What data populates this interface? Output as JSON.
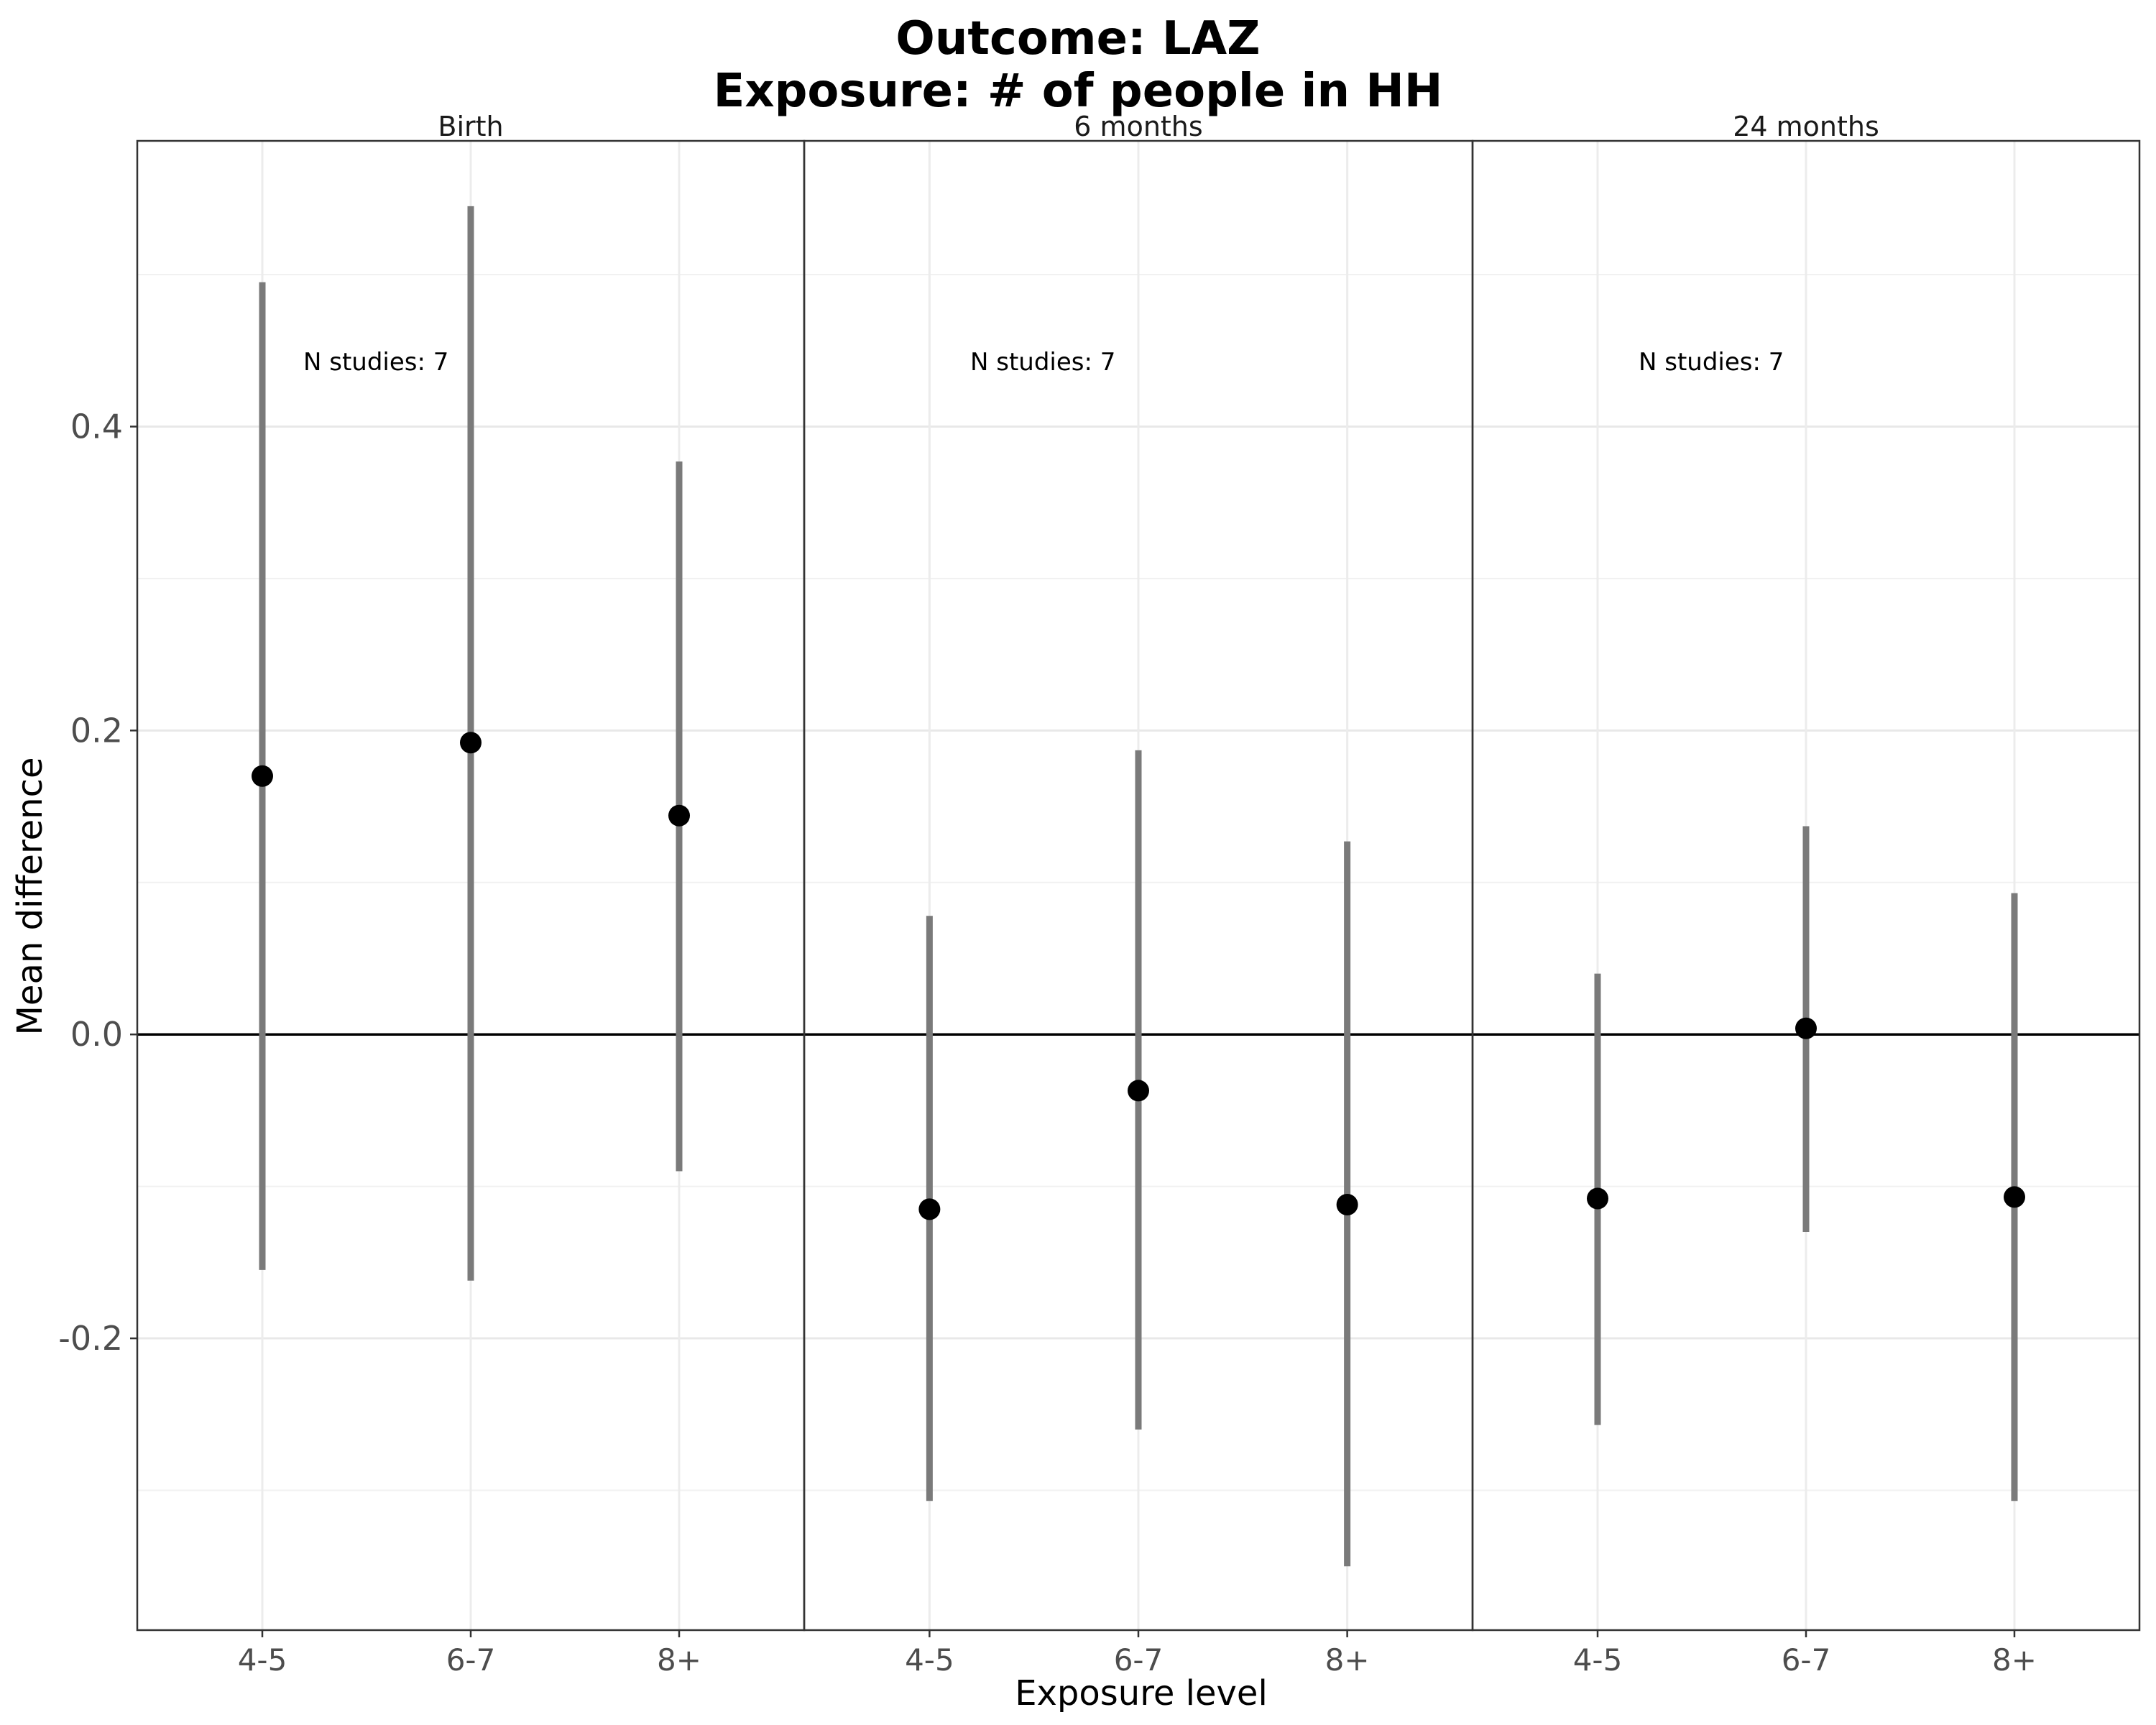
{
  "chart_data": {
    "type": "scatter",
    "title_line1": "Outcome: LAZ",
    "title_line2": "Exposure: # of people in HH",
    "xlabel": "Exposure level",
    "ylabel": "Mean difference",
    "ylim": [
      -0.392,
      0.588
    ],
    "yticks": [
      -0.2,
      0.0,
      0.2,
      0.4
    ],
    "ytick_labels": [
      "-0.2",
      "0.0",
      "0.2",
      "0.4"
    ],
    "categories": [
      "4-5",
      "6-7",
      "8+"
    ],
    "reference_line": 0,
    "grid": true,
    "point_color": "#000000",
    "interval_color": "#7a7a7a",
    "panels": [
      {
        "name": "Birth",
        "annotation": "N studies: 7",
        "points": [
          {
            "x": "4-5",
            "y": 0.17,
            "lower": -0.155,
            "upper": 0.495
          },
          {
            "x": "6-7",
            "y": 0.192,
            "lower": -0.162,
            "upper": 0.545
          },
          {
            "x": "8+",
            "y": 0.144,
            "lower": -0.09,
            "upper": 0.377
          }
        ]
      },
      {
        "name": "6 months",
        "annotation": "N studies: 7",
        "points": [
          {
            "x": "4-5",
            "y": -0.115,
            "lower": -0.307,
            "upper": 0.078
          },
          {
            "x": "6-7",
            "y": -0.037,
            "lower": -0.26,
            "upper": 0.187
          },
          {
            "x": "8+",
            "y": -0.112,
            "lower": -0.35,
            "upper": 0.127
          }
        ]
      },
      {
        "name": "24 months",
        "annotation": "N studies: 7",
        "points": [
          {
            "x": "4-5",
            "y": -0.108,
            "lower": -0.257,
            "upper": 0.04
          },
          {
            "x": "6-7",
            "y": 0.004,
            "lower": -0.13,
            "upper": 0.137
          },
          {
            "x": "8+",
            "y": -0.107,
            "lower": -0.307,
            "upper": 0.093
          }
        ]
      }
    ]
  }
}
